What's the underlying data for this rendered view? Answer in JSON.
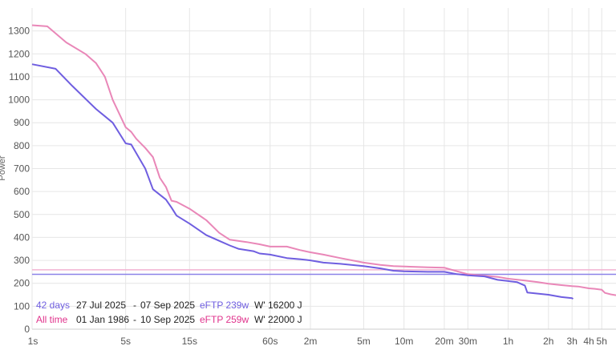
{
  "chart_data": {
    "type": "line",
    "title": "",
    "xlabel": "",
    "ylabel": "Power",
    "x_scale": "log",
    "x_range_seconds": [
      1,
      23000
    ],
    "ylim": [
      0,
      1400
    ],
    "y_ticks": [
      0,
      100,
      200,
      300,
      400,
      500,
      600,
      700,
      800,
      900,
      1000,
      1100,
      1200,
      1300
    ],
    "x_ticks": [
      {
        "label": "1s",
        "seconds": 1
      },
      {
        "label": "5s",
        "seconds": 5
      },
      {
        "label": "15s",
        "seconds": 15
      },
      {
        "label": "60s",
        "seconds": 60
      },
      {
        "label": "2m",
        "seconds": 120
      },
      {
        "label": "5m",
        "seconds": 300
      },
      {
        "label": "10m",
        "seconds": 600
      },
      {
        "label": "20m",
        "seconds": 1200
      },
      {
        "label": "30m",
        "seconds": 1800
      },
      {
        "label": "1h",
        "seconds": 3600
      },
      {
        "label": "2h",
        "seconds": 7200
      },
      {
        "label": "3h",
        "seconds": 10800
      },
      {
        "label": "4h",
        "seconds": 14400
      },
      {
        "label": "5h",
        "seconds": 18000
      }
    ],
    "grid": true,
    "series": [
      {
        "name": "42 days",
        "color": "#6f5ee0",
        "points": [
          [
            1,
            1155
          ],
          [
            1.5,
            1135
          ],
          [
            2,
            1060
          ],
          [
            3,
            960
          ],
          [
            4,
            900
          ],
          [
            5,
            810
          ],
          [
            5.5,
            805
          ],
          [
            7,
            700
          ],
          [
            8,
            610
          ],
          [
            10,
            565
          ],
          [
            11,
            530
          ],
          [
            12,
            495
          ],
          [
            15,
            460
          ],
          [
            20,
            410
          ],
          [
            25,
            385
          ],
          [
            30,
            365
          ],
          [
            35,
            350
          ],
          [
            45,
            340
          ],
          [
            50,
            330
          ],
          [
            60,
            325
          ],
          [
            80,
            310
          ],
          [
            100,
            305
          ],
          [
            120,
            300
          ],
          [
            150,
            290
          ],
          [
            200,
            285
          ],
          [
            300,
            275
          ],
          [
            400,
            265
          ],
          [
            500,
            255
          ],
          [
            600,
            252
          ],
          [
            900,
            250
          ],
          [
            1200,
            250
          ],
          [
            1500,
            240
          ],
          [
            1800,
            235
          ],
          [
            2400,
            230
          ],
          [
            3000,
            215
          ],
          [
            3600,
            210
          ],
          [
            4200,
            205
          ],
          [
            4800,
            190
          ],
          [
            5000,
            160
          ],
          [
            6000,
            155
          ],
          [
            7200,
            150
          ],
          [
            9000,
            140
          ],
          [
            10800,
            135
          ],
          [
            11000,
            132
          ]
        ]
      },
      {
        "name": "All time",
        "color": "#e987b8",
        "points": [
          [
            1,
            1325
          ],
          [
            1.3,
            1320
          ],
          [
            1.8,
            1250
          ],
          [
            2.5,
            1200
          ],
          [
            3,
            1160
          ],
          [
            3.5,
            1100
          ],
          [
            4,
            1000
          ],
          [
            5,
            880
          ],
          [
            5.5,
            860
          ],
          [
            6,
            830
          ],
          [
            7,
            790
          ],
          [
            8,
            750
          ],
          [
            9,
            660
          ],
          [
            10,
            620
          ],
          [
            11,
            560
          ],
          [
            12,
            555
          ],
          [
            15,
            525
          ],
          [
            20,
            475
          ],
          [
            25,
            420
          ],
          [
            30,
            390
          ],
          [
            40,
            380
          ],
          [
            50,
            370
          ],
          [
            60,
            360
          ],
          [
            80,
            360
          ],
          [
            100,
            345
          ],
          [
            120,
            335
          ],
          [
            150,
            325
          ],
          [
            200,
            310
          ],
          [
            300,
            290
          ],
          [
            400,
            280
          ],
          [
            500,
            275
          ],
          [
            700,
            272
          ],
          [
            900,
            270
          ],
          [
            1200,
            268
          ],
          [
            1500,
            252
          ],
          [
            1800,
            240
          ],
          [
            2400,
            233
          ],
          [
            3000,
            228
          ],
          [
            3600,
            220
          ],
          [
            4800,
            212
          ],
          [
            6000,
            205
          ],
          [
            7200,
            198
          ],
          [
            9000,
            192
          ],
          [
            10800,
            188
          ],
          [
            12000,
            186
          ],
          [
            14400,
            178
          ],
          [
            16000,
            176
          ],
          [
            18000,
            172
          ],
          [
            19000,
            158
          ],
          [
            21000,
            152
          ],
          [
            23000,
            148
          ]
        ]
      }
    ],
    "reference_lines": [
      {
        "series": "42 days",
        "y": 239,
        "color": "#8c82e8"
      },
      {
        "series": "All time",
        "y": 259,
        "color": "#f2b3d2"
      }
    ]
  },
  "legend": [
    {
      "name": "42 days",
      "start": "27 Jul 2025",
      "dash": "-",
      "end": "07 Sep 2025",
      "eftp": "eFTP 239w",
      "wprime": "W' 16200 J",
      "color": "#6f5ee0"
    },
    {
      "name": "All time",
      "start": "01 Jan 1986",
      "dash": "-",
      "end": "10 Sep 2025",
      "eftp": "eFTP 259w",
      "wprime": "W' 22000 J",
      "color": "#e0338c"
    }
  ]
}
